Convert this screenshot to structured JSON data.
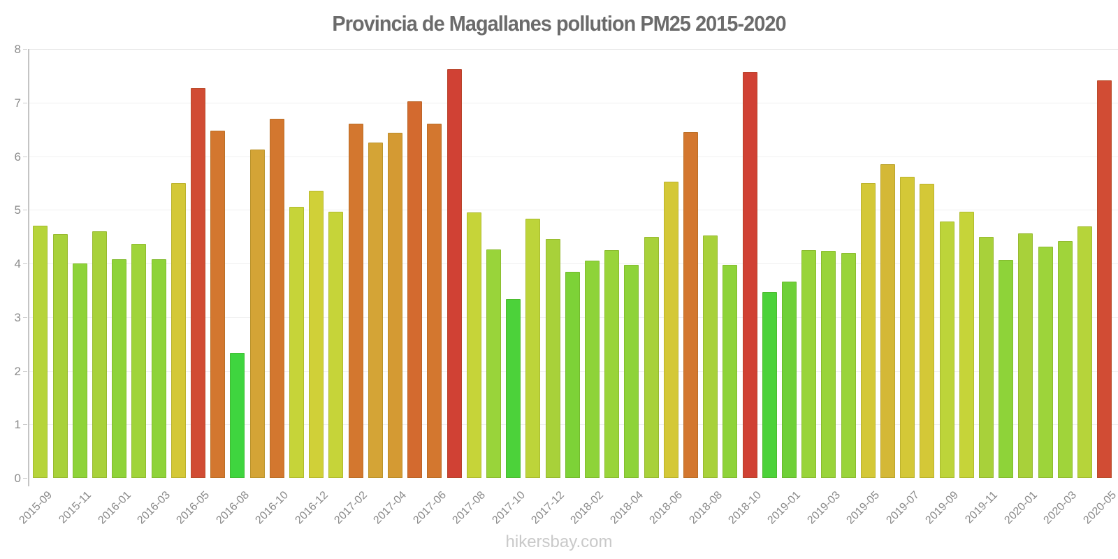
{
  "page": {
    "title": "Provincia de Magallanes pollution PM25 2015-2020",
    "watermark": "hikersbay.com"
  },
  "colors": {
    "title_text": "#6b6b6b",
    "axis_line": "#c4c4c4",
    "tick_label_text": "#8a8a8a",
    "gridline": "#f0f0f0",
    "watermark_text": "#c9c9c9"
  },
  "chart_data": {
    "type": "bar",
    "title": "Provincia de Magallanes pollution PM25 2015-2020",
    "xlabel": "",
    "ylabel": "",
    "ylim": [
      0,
      8
    ],
    "y_ticks": [
      0,
      1,
      2,
      3,
      4,
      5,
      6,
      7,
      8
    ],
    "grid": true,
    "legend_position": "none",
    "x_tick_labels_shown": [
      "2015-09",
      "2015-11",
      "2016-01",
      "2016-03",
      "2016-05",
      "2016-08",
      "2016-10",
      "2016-12",
      "2017-02",
      "2017-04",
      "2017-06",
      "2017-08",
      "2017-10",
      "2017-12",
      "2018-02",
      "2018-04",
      "2018-06",
      "2018-08",
      "2018-10",
      "2019-01",
      "2019-03",
      "2019-05",
      "2019-07",
      "2019-09",
      "2019-11",
      "2020-01",
      "2020-03",
      "2020-05"
    ],
    "bars": [
      {
        "label": "2015-09",
        "value": 4.7,
        "color": "#b6d43a"
      },
      {
        "label": "",
        "value": 4.55,
        "color": "#a8d13a"
      },
      {
        "label": "2015-11",
        "value": 4.0,
        "color": "#8ed339"
      },
      {
        "label": "",
        "value": 4.6,
        "color": "#a8d13a"
      },
      {
        "label": "2016-01",
        "value": 4.08,
        "color": "#8ed339"
      },
      {
        "label": "",
        "value": 4.37,
        "color": "#a0d43a"
      },
      {
        "label": "2016-03",
        "value": 4.08,
        "color": "#8ed339"
      },
      {
        "label": "",
        "value": 5.5,
        "color": "#d4c837"
      },
      {
        "label": "2016-05",
        "value": 7.27,
        "color": "#d14c34"
      },
      {
        "label": "",
        "value": 6.48,
        "color": "#d3772f"
      },
      {
        "label": "2016-08",
        "value": 2.33,
        "color": "#3fd53f"
      },
      {
        "label": "",
        "value": 6.12,
        "color": "#d4a436"
      },
      {
        "label": "2016-10",
        "value": 6.7,
        "color": "#d3772f"
      },
      {
        "label": "",
        "value": 5.05,
        "color": "#c6d439"
      },
      {
        "label": "2016-12",
        "value": 5.36,
        "color": "#d0d038"
      },
      {
        "label": "",
        "value": 4.97,
        "color": "#c6d439"
      },
      {
        "label": "2017-02",
        "value": 6.61,
        "color": "#d3772f"
      },
      {
        "label": "",
        "value": 6.26,
        "color": "#d4a436"
      },
      {
        "label": "2017-04",
        "value": 6.43,
        "color": "#d49a33"
      },
      {
        "label": "",
        "value": 7.02,
        "color": "#d36a2f"
      },
      {
        "label": "2017-06",
        "value": 6.61,
        "color": "#d3772f"
      },
      {
        "label": "",
        "value": 7.62,
        "color": "#d04134"
      },
      {
        "label": "2017-08",
        "value": 4.95,
        "color": "#c6d439"
      },
      {
        "label": "",
        "value": 4.26,
        "color": "#99d43a"
      },
      {
        "label": "2017-10",
        "value": 3.33,
        "color": "#4cd23a"
      },
      {
        "label": "",
        "value": 4.84,
        "color": "#bdd43a"
      },
      {
        "label": "2017-12",
        "value": 4.46,
        "color": "#a8d13a"
      },
      {
        "label": "",
        "value": 3.85,
        "color": "#7dd237"
      },
      {
        "label": "2018-02",
        "value": 4.05,
        "color": "#8ed339"
      },
      {
        "label": "",
        "value": 4.25,
        "color": "#99d43a"
      },
      {
        "label": "2018-04",
        "value": 3.97,
        "color": "#8ed339"
      },
      {
        "label": "",
        "value": 4.49,
        "color": "#a8d13a"
      },
      {
        "label": "2018-06",
        "value": 5.53,
        "color": "#d4c837"
      },
      {
        "label": "",
        "value": 6.45,
        "color": "#d3772f"
      },
      {
        "label": "2018-08",
        "value": 4.52,
        "color": "#a8d13a"
      },
      {
        "label": "",
        "value": 3.98,
        "color": "#8ed339"
      },
      {
        "label": "2018-10",
        "value": 7.57,
        "color": "#d04134"
      },
      {
        "label": "",
        "value": 3.47,
        "color": "#4cd23a"
      },
      {
        "label": "2019-01",
        "value": 3.66,
        "color": "#6fd038"
      },
      {
        "label": "",
        "value": 4.25,
        "color": "#99d43a"
      },
      {
        "label": "2019-03",
        "value": 4.23,
        "color": "#99d43a"
      },
      {
        "label": "",
        "value": 4.19,
        "color": "#99d43a"
      },
      {
        "label": "2019-05",
        "value": 5.5,
        "color": "#d4c837"
      },
      {
        "label": "",
        "value": 5.85,
        "color": "#d4b837"
      },
      {
        "label": "2019-07",
        "value": 5.61,
        "color": "#d4c837"
      },
      {
        "label": "",
        "value": 5.49,
        "color": "#d4c837"
      },
      {
        "label": "2019-09",
        "value": 4.78,
        "color": "#bdd43a"
      },
      {
        "label": "",
        "value": 4.96,
        "color": "#c6d439"
      },
      {
        "label": "2019-11",
        "value": 4.49,
        "color": "#a8d13a"
      },
      {
        "label": "",
        "value": 4.07,
        "color": "#8ed339"
      },
      {
        "label": "2020-01",
        "value": 4.56,
        "color": "#a8d13a"
      },
      {
        "label": "",
        "value": 4.31,
        "color": "#9dd43a"
      },
      {
        "label": "2020-03",
        "value": 4.42,
        "color": "#a0d43a"
      },
      {
        "label": "",
        "value": 4.69,
        "color": "#b6d43a"
      },
      {
        "label": "2020-05",
        "value": 7.41,
        "color": "#d14c34"
      }
    ]
  }
}
